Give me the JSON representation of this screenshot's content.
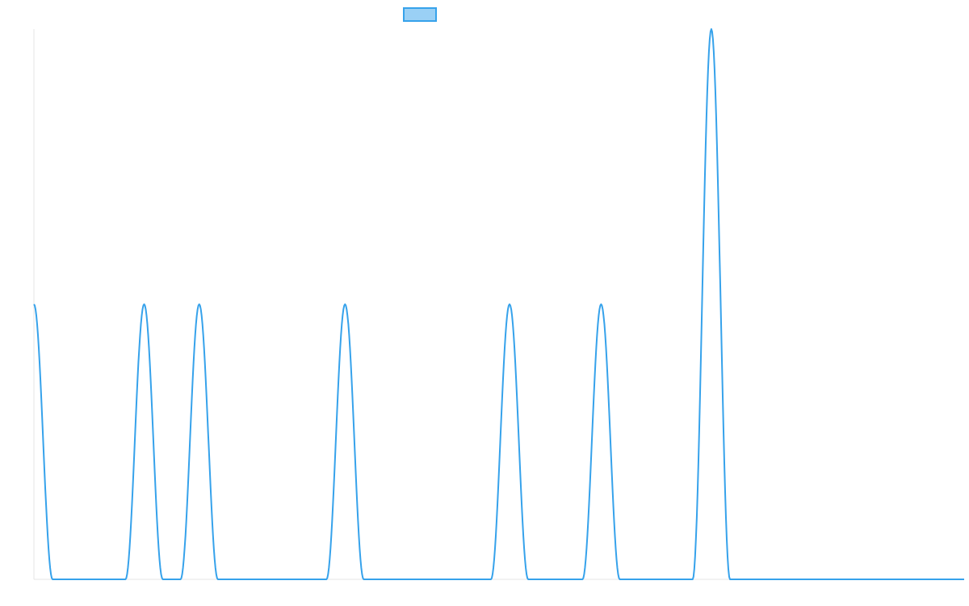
{
  "chart_data": {
    "type": "line",
    "title": "",
    "xlabel": "",
    "ylabel": "",
    "legend": {
      "placement": "top-center",
      "entries": [
        ""
      ]
    },
    "grid": false,
    "colors": {
      "line": "#36a2eb",
      "legend_fill": "#9ad0f5",
      "axis": "#e6e6e6"
    },
    "xlim": [
      0,
      1148
    ],
    "ylim": [
      0,
      2
    ],
    "series": [
      {
        "name": "",
        "peaks": [
          {
            "x": 0,
            "height": 1
          },
          {
            "x": 136,
            "height": 1
          },
          {
            "x": 204,
            "height": 1
          },
          {
            "x": 384,
            "height": 1
          },
          {
            "x": 587,
            "height": 1
          },
          {
            "x": 700,
            "height": 1
          },
          {
            "x": 836,
            "height": 2
          }
        ],
        "peak_halfwidth": 23,
        "baseline": 0
      }
    ]
  }
}
